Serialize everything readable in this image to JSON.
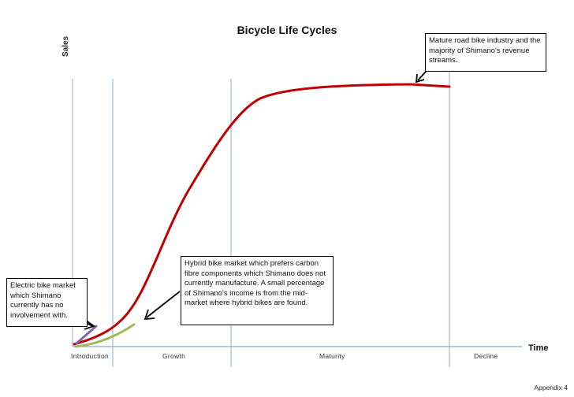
{
  "title": "Bicycle Life Cycles",
  "axes": {
    "y_label": "Sales",
    "x_label": "Time"
  },
  "stages": [
    "Introduction",
    "Growth",
    "Maturity",
    "Decline"
  ],
  "annotations": {
    "mature": "Mature road bike industry and the majority of Shimano's revenue streams.",
    "hybrid": "Hybrid bike market which prefers carbon fibre components which Shimano does not currently manufacture. A small percentage of Shimano's income is from the mid-market  where hybrid bikes  are found.",
    "electric": "Electric bike market which Shimano currently has no involvement with."
  },
  "footer": "Appendix 4",
  "colors": {
    "road_curve": "#c00000",
    "hybrid_curve": "#9bbb59",
    "electric_curve": "#8064a2",
    "stage_lines": "#8fa9cc"
  }
}
